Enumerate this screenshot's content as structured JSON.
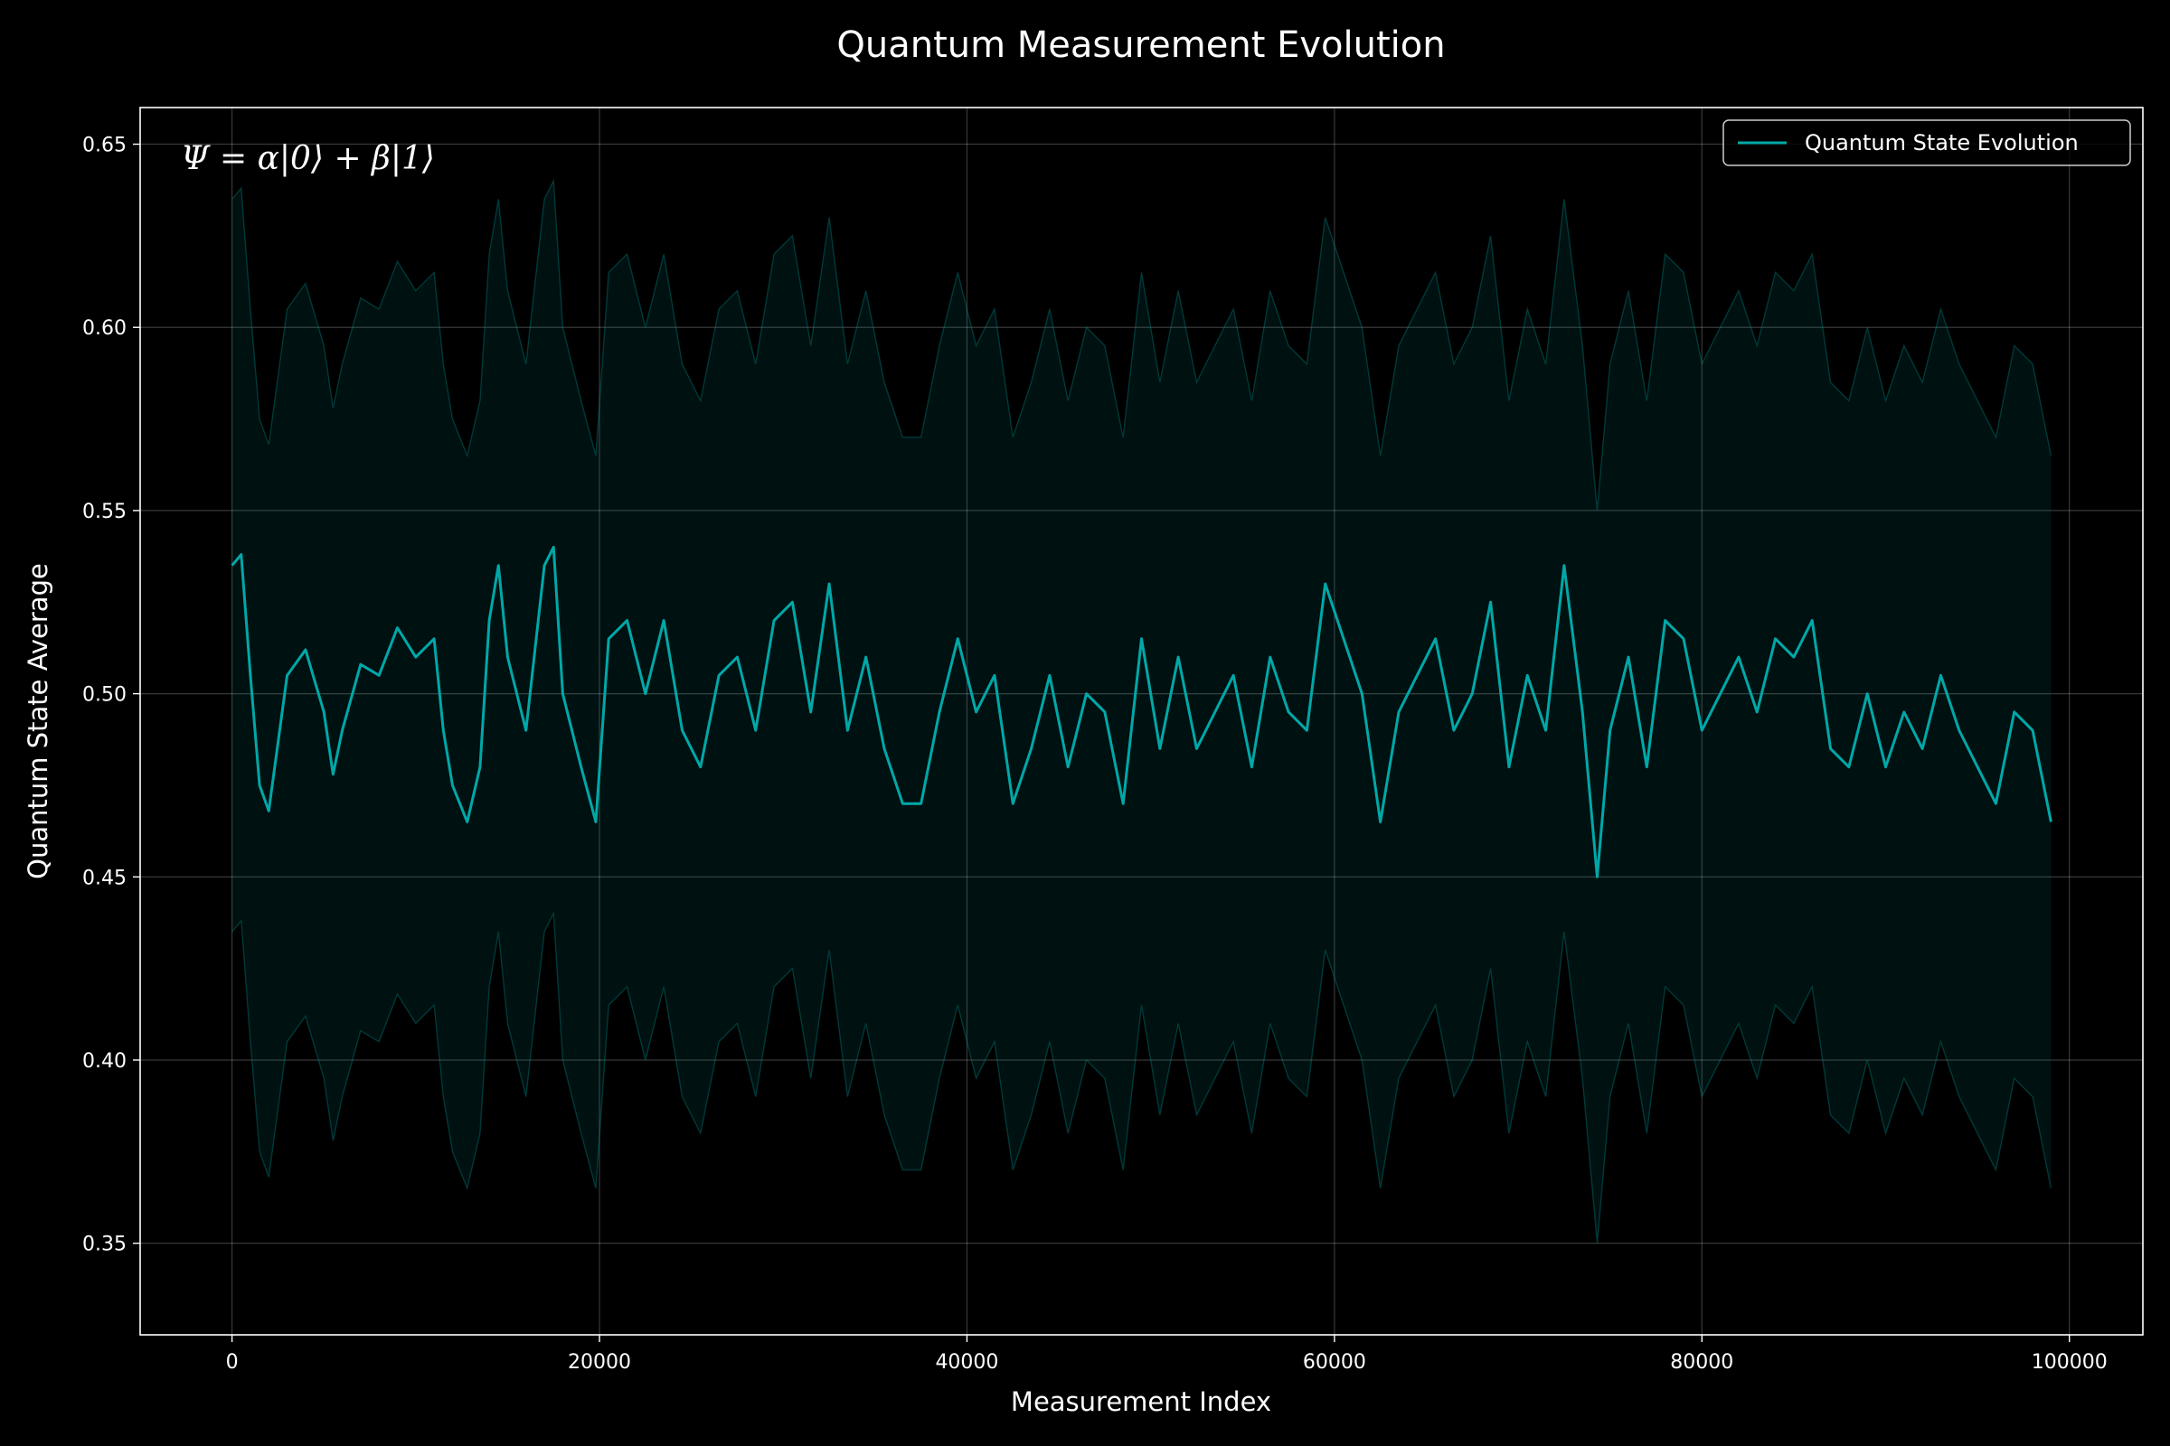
{
  "chart_data": {
    "type": "line",
    "title": "Quantum Measurement Evolution",
    "xlabel": "Measurement Index",
    "ylabel": "Quantum State Average",
    "annotation": "Ψ = α|0⟩ + β|1⟩",
    "xlim": [
      -5000,
      104000
    ],
    "ylim": [
      0.325,
      0.66
    ],
    "xticks": [
      0,
      20000,
      40000,
      60000,
      80000,
      100000
    ],
    "xtick_labels": [
      "0",
      "20000",
      "40000",
      "60000",
      "80000",
      "100000"
    ],
    "yticks": [
      0.35,
      0.4,
      0.45,
      0.5,
      0.55,
      0.6,
      0.65
    ],
    "ytick_labels": [
      "0.35",
      "0.40",
      "0.45",
      "0.50",
      "0.55",
      "0.60",
      "0.65"
    ],
    "grid": true,
    "legend_position": "top-right",
    "band_halfwidth": 0.1,
    "series": [
      {
        "name": "Quantum State Evolution",
        "color": "#00a8a8",
        "x": [
          0,
          500,
          1000,
          1500,
          2000,
          3000,
          4000,
          5000,
          5500,
          6000,
          7000,
          8000,
          9000,
          10000,
          11000,
          11500,
          12000,
          12800,
          13500,
          14000,
          14500,
          15000,
          16000,
          17000,
          17500,
          18000,
          19000,
          19800,
          20500,
          21500,
          22500,
          23500,
          24500,
          25500,
          26500,
          27500,
          28500,
          29500,
          30500,
          31500,
          32500,
          33500,
          34500,
          35500,
          36500,
          37500,
          38500,
          39500,
          40500,
          41500,
          42500,
          43500,
          44500,
          45500,
          46500,
          47500,
          48500,
          49500,
          50500,
          51500,
          52500,
          53500,
          54500,
          55500,
          56500,
          57500,
          58500,
          59500,
          60500,
          61500,
          62500,
          63500,
          64500,
          65500,
          66500,
          67500,
          68500,
          69500,
          70500,
          71500,
          72500,
          73500,
          74300,
          75000,
          76000,
          77000,
          78000,
          79000,
          80000,
          81000,
          82000,
          83000,
          84000,
          85000,
          86000,
          87000,
          88000,
          89000,
          90000,
          91000,
          92000,
          93000,
          94000,
          95000,
          96000,
          97000,
          98000,
          99000
        ],
        "y": [
          0.535,
          0.538,
          0.505,
          0.475,
          0.468,
          0.505,
          0.512,
          0.495,
          0.478,
          0.49,
          0.508,
          0.505,
          0.518,
          0.51,
          0.515,
          0.49,
          0.475,
          0.465,
          0.48,
          0.52,
          0.535,
          0.51,
          0.49,
          0.535,
          0.54,
          0.5,
          0.48,
          0.465,
          0.515,
          0.52,
          0.5,
          0.52,
          0.49,
          0.48,
          0.505,
          0.51,
          0.49,
          0.52,
          0.525,
          0.495,
          0.53,
          0.49,
          0.51,
          0.485,
          0.47,
          0.47,
          0.495,
          0.515,
          0.495,
          0.505,
          0.47,
          0.485,
          0.505,
          0.48,
          0.5,
          0.495,
          0.47,
          0.515,
          0.485,
          0.51,
          0.485,
          0.495,
          0.505,
          0.48,
          0.51,
          0.495,
          0.49,
          0.53,
          0.515,
          0.5,
          0.465,
          0.495,
          0.505,
          0.515,
          0.49,
          0.5,
          0.525,
          0.48,
          0.505,
          0.49,
          0.535,
          0.495,
          0.45,
          0.49,
          0.51,
          0.48,
          0.52,
          0.515,
          0.49,
          0.5,
          0.51,
          0.495,
          0.515,
          0.51,
          0.52,
          0.485,
          0.48,
          0.5,
          0.48,
          0.495,
          0.485,
          0.505,
          0.49,
          0.48,
          0.47,
          0.495,
          0.49,
          0.465
        ]
      }
    ]
  }
}
